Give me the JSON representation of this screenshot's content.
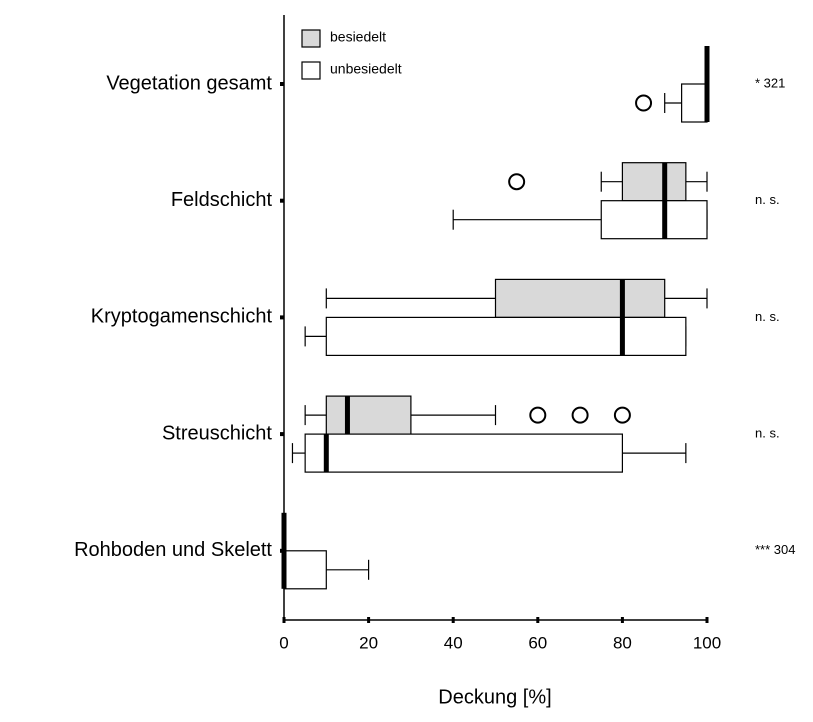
{
  "chart_data": {
    "type": "boxplot",
    "orientation": "horizontal",
    "x_label": "Deckung [%]",
    "categories": [
      "Vegetation gesamt",
      "Feldschicht",
      "Kryptogamenschicht",
      "Streuschicht",
      "Rohboden und Skelett"
    ],
    "annotations": [
      "* 321",
      "n. s.",
      "n. s.",
      "n. s.",
      "*** 304"
    ],
    "xlim": [
      0,
      100
    ],
    "xticks": [
      0,
      20,
      40,
      60,
      80,
      100
    ],
    "legend": "top-left",
    "series": [
      {
        "name": "besiedelt",
        "color": "#d9d9d9",
        "boxes": [
          {
            "min": 100,
            "q1": 100,
            "median": 100,
            "q3": 100,
            "max": 100
          },
          {
            "min": 75,
            "q1": 80,
            "median": 90,
            "q3": 95,
            "max": 100,
            "outliers": [
              55
            ]
          },
          {
            "min": 10,
            "q1": 50,
            "median": 80,
            "q3": 90,
            "max": 100
          },
          {
            "min": 5,
            "q1": 10,
            "median": 15,
            "q3": 30,
            "max": 50,
            "outliers": [
              60,
              70,
              80
            ]
          },
          {
            "min": 0,
            "q1": 0,
            "median": 0,
            "q3": 0,
            "max": 0
          }
        ]
      },
      {
        "name": "unbesiedelt",
        "color": "#ffffff",
        "boxes": [
          {
            "min": 90,
            "q1": 94,
            "median": 100,
            "q3": 100,
            "max": 100,
            "outliers": [
              85
            ]
          },
          {
            "min": 40,
            "q1": 75,
            "median": 90,
            "q3": 100,
            "max": 100
          },
          {
            "min": 5,
            "q1": 10,
            "median": 80,
            "q3": 95,
            "max": 95
          },
          {
            "min": 2,
            "q1": 5,
            "median": 10,
            "q3": 80,
            "max": 95
          },
          {
            "min": 0,
            "q1": 0,
            "median": 0,
            "q3": 10,
            "max": 20
          }
        ]
      }
    ]
  }
}
